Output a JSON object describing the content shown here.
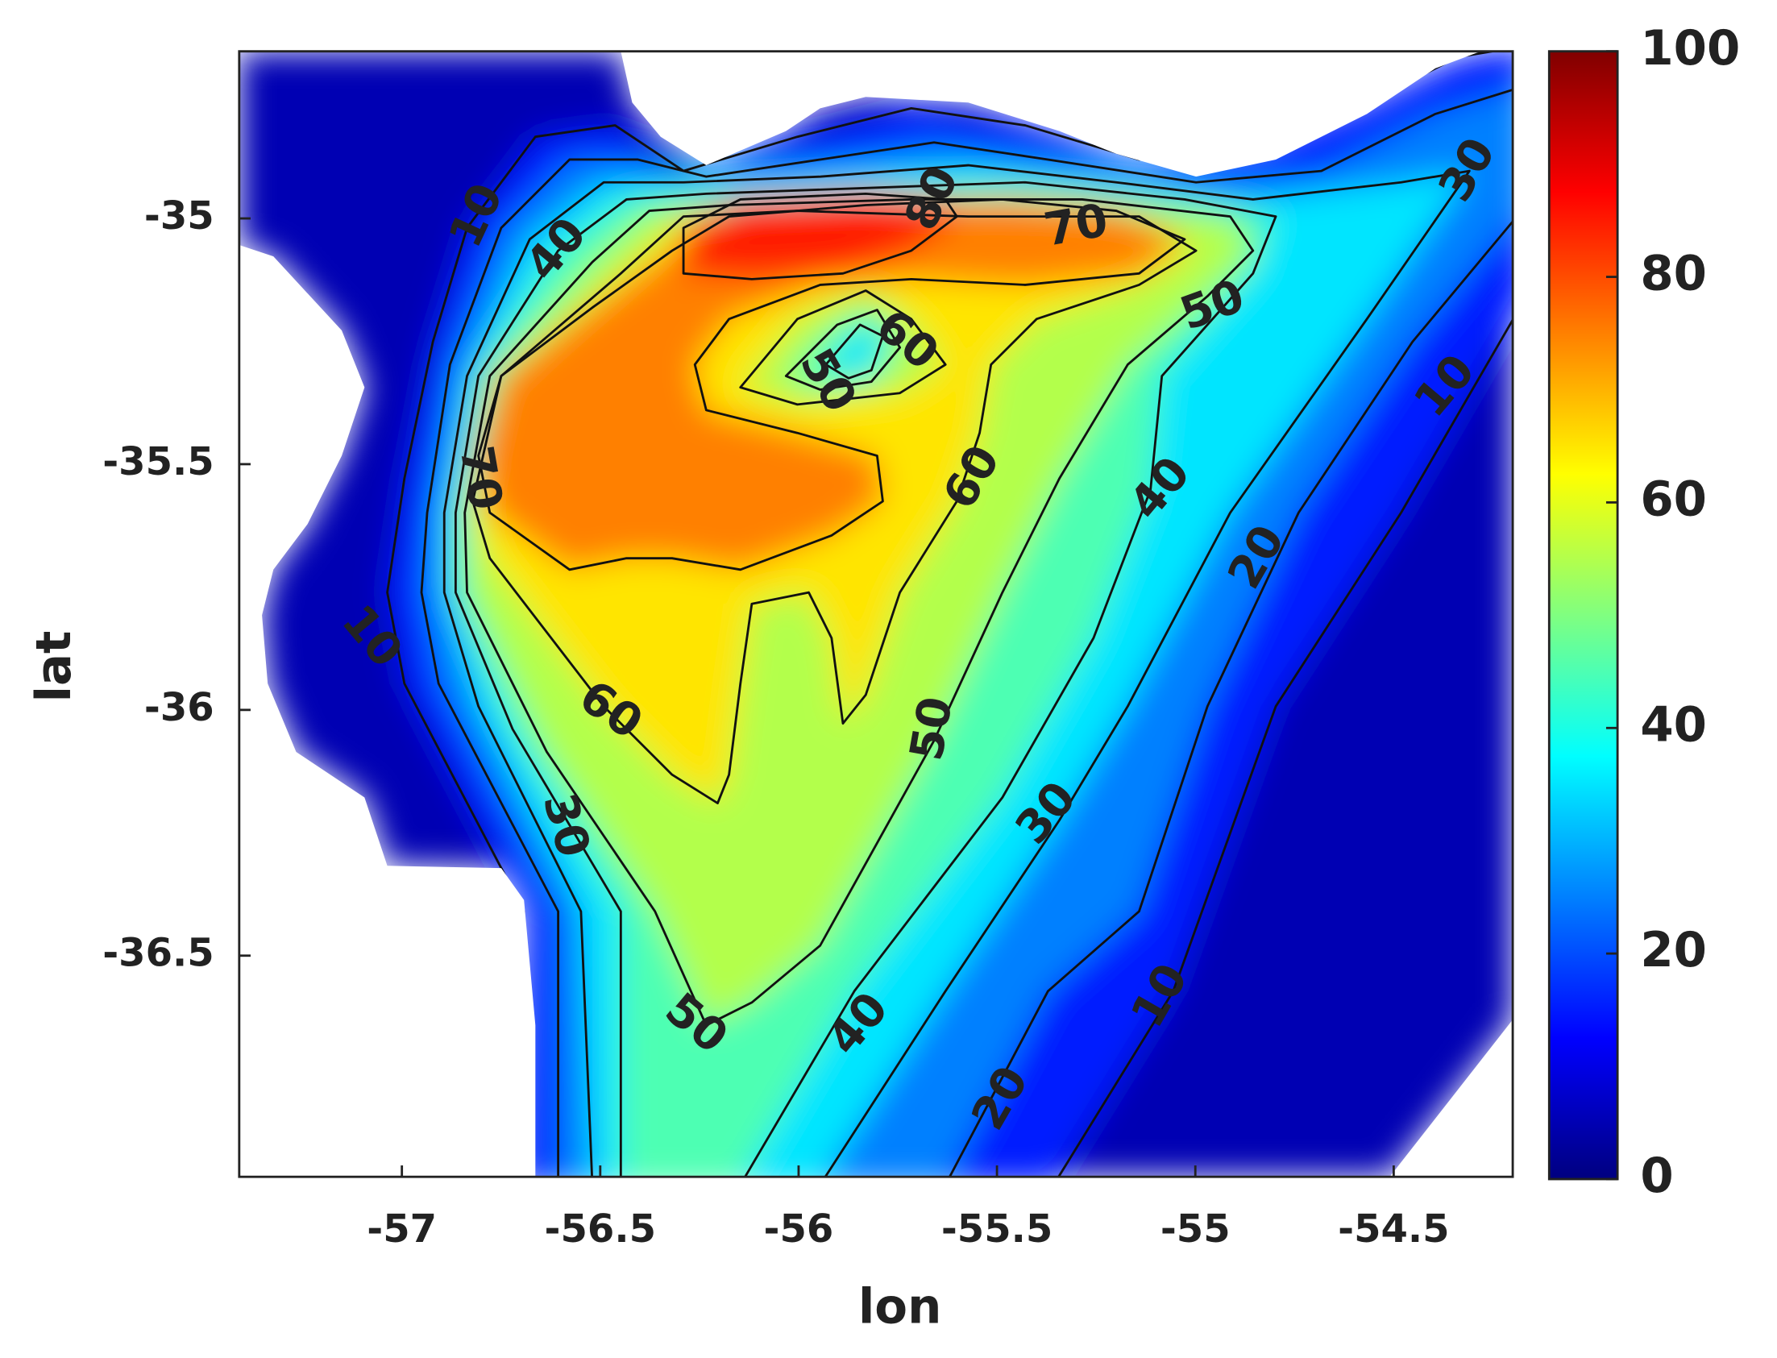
{
  "chart_data": {
    "type": "contour",
    "x_label": "lon",
    "y_label": "lat",
    "xlim": [
      -57.41,
      -54.2
    ],
    "ylim": [
      -36.95,
      -34.66
    ],
    "xticks": [
      -57,
      -56.5,
      -56,
      -55.5,
      -55,
      -54.5
    ],
    "yticks": [
      -36.5,
      -36,
      -35.5,
      -35
    ],
    "colorbar": {
      "lim": [
        0,
        100
      ],
      "ticks": [
        0,
        20,
        40,
        60,
        80,
        100
      ],
      "colormap": "jet"
    },
    "levels": [
      10,
      20,
      30,
      40,
      50,
      60,
      70,
      80
    ],
    "contour_labels": [
      10,
      40,
      80,
      70,
      30,
      50,
      60,
      50,
      60,
      70,
      40,
      10,
      20,
      10,
      60,
      50,
      30,
      30,
      50,
      40,
      20,
      10
    ]
  }
}
